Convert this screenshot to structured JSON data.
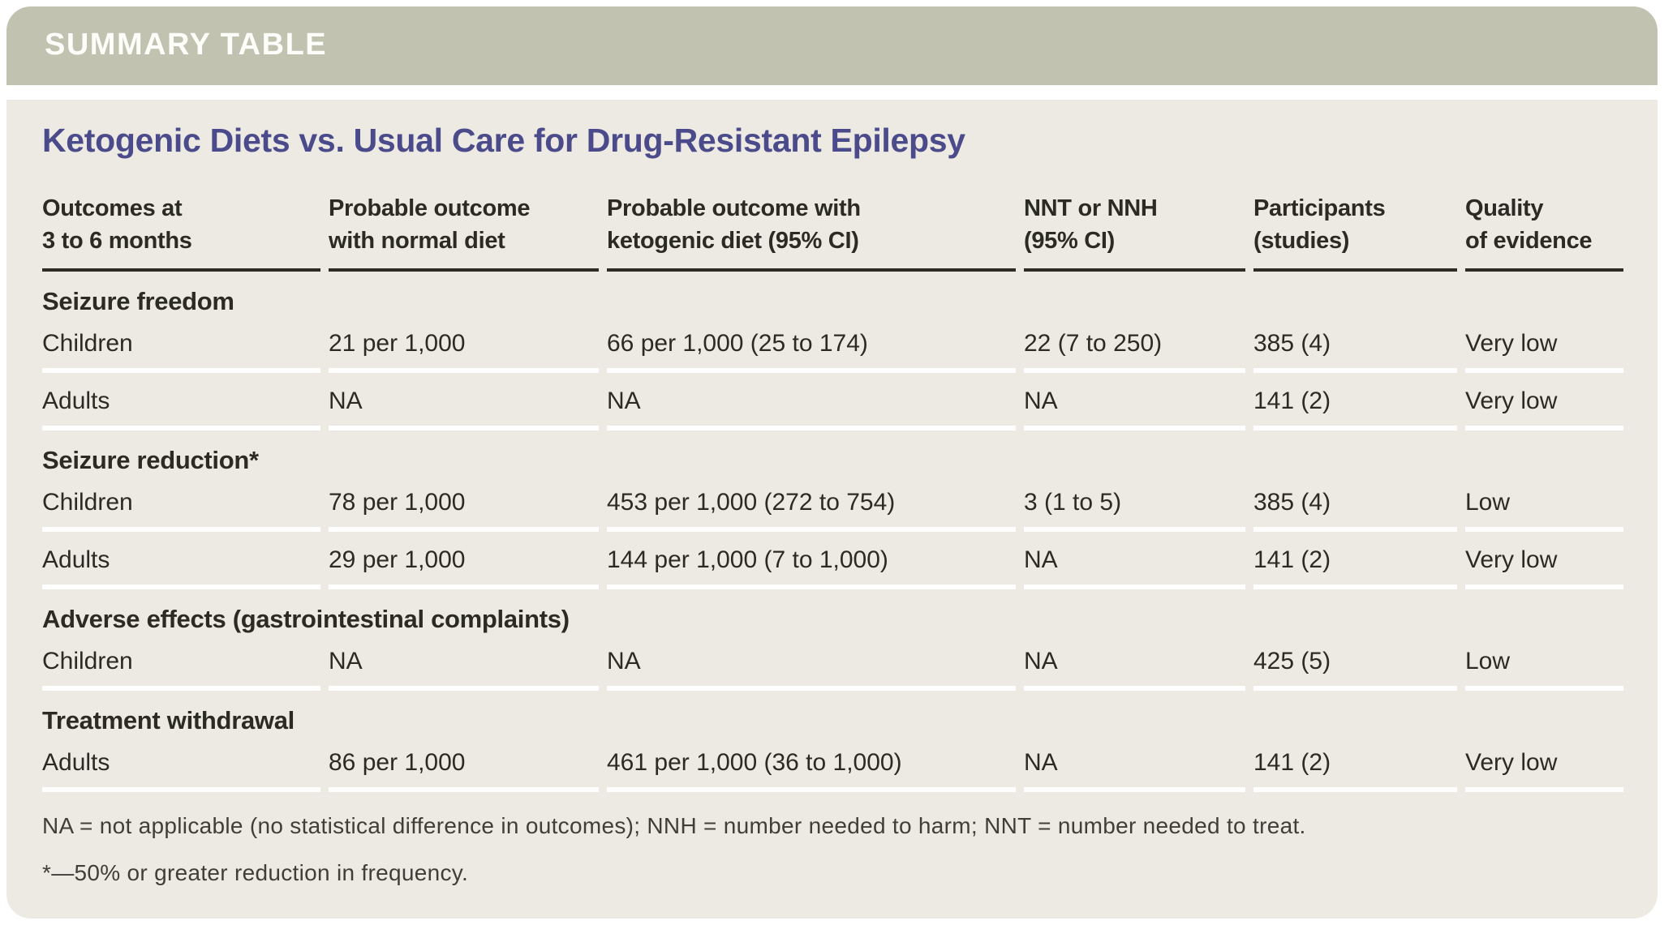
{
  "banner": {
    "label": "SUMMARY TABLE"
  },
  "title": "Ketogenic Diets vs. Usual Care for Drug-Resistant Epilepsy",
  "table": {
    "columns": [
      "Outcomes at\n3 to 6 months",
      "Probable outcome\nwith normal diet",
      "Probable outcome with\nketogenic diet (95% CI)",
      "NNT or NNH\n(95% CI)",
      "Participants\n(studies)",
      "Quality\nof evidence"
    ],
    "sections": [
      {
        "header": "Seizure freedom",
        "rows": [
          {
            "outcome": "Children",
            "normal_diet": "21 per 1,000",
            "ketogenic_diet": "66 per 1,000 (25 to 174)",
            "nnt_nnh": "22 (7 to 250)",
            "participants": "385 (4)",
            "quality": "Very low"
          },
          {
            "outcome": "Adults",
            "normal_diet": "NA",
            "ketogenic_diet": "NA",
            "nnt_nnh": "NA",
            "participants": "141 (2)",
            "quality": "Very low"
          }
        ]
      },
      {
        "header": "Seizure reduction*",
        "rows": [
          {
            "outcome": "Children",
            "normal_diet": "78 per 1,000",
            "ketogenic_diet": "453 per 1,000 (272 to 754)",
            "nnt_nnh": "3 (1 to 5)",
            "participants": "385 (4)",
            "quality": "Low"
          },
          {
            "outcome": "Adults",
            "normal_diet": "29 per 1,000",
            "ketogenic_diet": "144 per 1,000 (7 to 1,000)",
            "nnt_nnh": "NA",
            "participants": "141 (2)",
            "quality": "Very low"
          }
        ]
      },
      {
        "header": "Adverse effects (gastrointestinal complaints)",
        "rows": [
          {
            "outcome": "Children",
            "normal_diet": "NA",
            "ketogenic_diet": "NA",
            "nnt_nnh": "NA",
            "participants": "425 (5)",
            "quality": "Low"
          }
        ]
      },
      {
        "header": "Treatment withdrawal",
        "rows": [
          {
            "outcome": "Adults",
            "normal_diet": "86 per 1,000",
            "ketogenic_diet": "461 per 1,000 (36 to 1,000)",
            "nnt_nnh": "NA",
            "participants": "141 (2)",
            "quality": "Very low"
          }
        ]
      }
    ]
  },
  "footnotes": [
    "NA = not applicable (no statistical difference in outcomes); NNH = number needed to harm; NNT = number needed to treat.",
    "*—50% or greater reduction in frequency."
  ],
  "colors": {
    "banner_bg": "#c1c2b0",
    "banner_text": "#fdfdfa",
    "card_bg": "#eceae2",
    "title_text": "#4b4b8b",
    "body_text": "#2b2b24",
    "header_rule": "#2d2d26",
    "row_separator": "#ffffff"
  }
}
